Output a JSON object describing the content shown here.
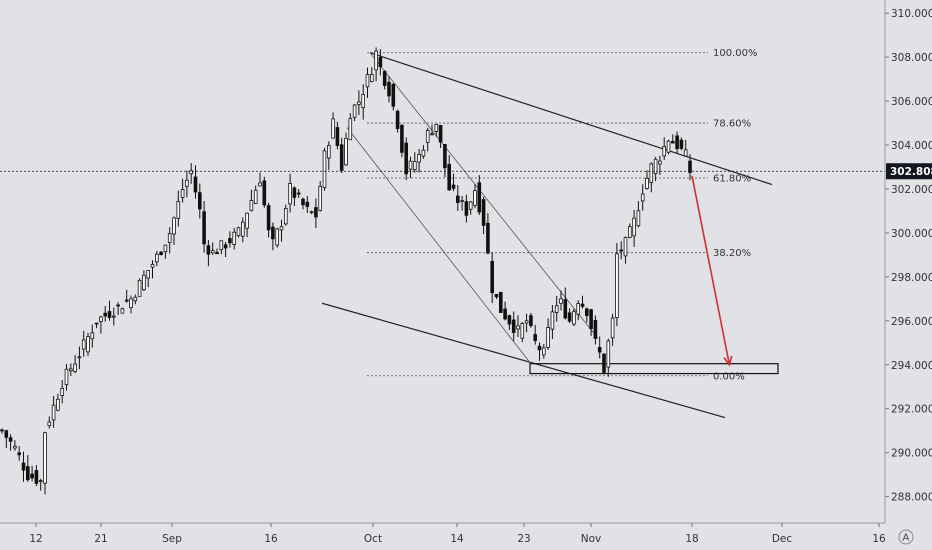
{
  "chart_data": {
    "type": "candlestick",
    "title": "",
    "xlabel": "",
    "ylabel": "",
    "ylim": [
      286.8,
      310.6
    ],
    "y_ticks": [
      "288.000",
      "290.000",
      "292.000",
      "294.000",
      "296.000",
      "298.000",
      "300.000",
      "302.000",
      "304.000",
      "306.000",
      "308.000",
      "310.000"
    ],
    "x_ticks": [
      "12",
      "21",
      "Sep",
      "16",
      "Oct",
      "14",
      "23",
      "Nov",
      "18",
      "Dec",
      "16"
    ],
    "current_price": 302.808,
    "current_price_label": "302.808",
    "fib_levels": [
      {
        "label": "100.00%",
        "price": 308.2
      },
      {
        "label": "78.60%",
        "price": 305.0
      },
      {
        "label": "61.80%",
        "price": 302.5
      },
      {
        "label": "38.20%",
        "price": 299.1
      },
      {
        "label": "0.00%",
        "price": 293.5
      }
    ],
    "support_zone": {
      "low": 293.6,
      "high": 294.05
    },
    "price_path": [
      [
        0,
        291.0
      ],
      [
        3,
        290.2
      ],
      [
        6,
        289.0
      ],
      [
        9,
        288.7
      ],
      [
        10,
        291.0
      ],
      [
        14,
        293.2
      ],
      [
        18,
        294.5
      ],
      [
        22,
        296.0
      ],
      [
        26,
        296.5
      ],
      [
        30,
        297.0
      ],
      [
        33,
        298.0
      ],
      [
        36,
        298.9
      ],
      [
        39,
        300.0
      ],
      [
        42,
        302.0
      ],
      [
        44,
        302.8
      ],
      [
        46,
        301.0
      ],
      [
        47,
        299.5
      ],
      [
        49,
        299.1
      ],
      [
        52,
        299.5
      ],
      [
        55,
        300.0
      ],
      [
        58,
        301.5
      ],
      [
        60,
        302.5
      ],
      [
        62,
        300.0
      ],
      [
        63,
        299.5
      ],
      [
        65,
        300.5
      ],
      [
        67,
        302.0
      ],
      [
        69,
        301.5
      ],
      [
        71,
        301.0
      ],
      [
        73,
        300.8
      ],
      [
        75,
        303.5
      ],
      [
        77,
        305.0
      ],
      [
        79,
        303.0
      ],
      [
        81,
        305.5
      ],
      [
        83,
        306.0
      ],
      [
        85,
        307.0
      ],
      [
        86,
        307.5
      ],
      [
        87,
        308.2
      ],
      [
        88,
        307.5
      ],
      [
        90,
        306.5
      ],
      [
        92,
        305.0
      ],
      [
        94,
        302.8
      ],
      [
        97,
        303.5
      ],
      [
        99,
        304.5
      ],
      [
        101,
        305.0
      ],
      [
        103,
        303.0
      ],
      [
        104,
        302.0
      ],
      [
        106,
        301.5
      ],
      [
        108,
        301.0
      ],
      [
        110,
        302.0
      ],
      [
        112,
        300.5
      ],
      [
        113,
        299.0
      ],
      [
        114,
        297.5
      ],
      [
        116,
        296.5
      ],
      [
        118,
        296.0
      ],
      [
        120,
        295.5
      ],
      [
        122,
        296.0
      ],
      [
        124,
        295.0
      ],
      [
        126,
        294.5
      ],
      [
        128,
        296.5
      ],
      [
        130,
        296.8
      ],
      [
        132,
        296.0
      ],
      [
        134,
        297.0
      ],
      [
        136,
        296.5
      ],
      [
        138,
        295.0
      ],
      [
        139,
        294.5
      ],
      [
        140,
        293.8
      ],
      [
        141,
        295.0
      ],
      [
        142,
        296.0
      ],
      [
        143,
        299.0
      ],
      [
        145,
        299.5
      ],
      [
        147,
        300.5
      ],
      [
        149,
        302.0
      ],
      [
        151,
        303.0
      ],
      [
        153,
        303.5
      ],
      [
        155,
        304.3
      ],
      [
        157,
        304.0
      ],
      [
        159,
        303.5
      ],
      [
        160,
        302.8
      ]
    ],
    "projection": {
      "from": [
        160,
        302.6
      ],
      "to": [
        168,
        294.0
      ],
      "color": "#d32f2f"
    }
  }
}
